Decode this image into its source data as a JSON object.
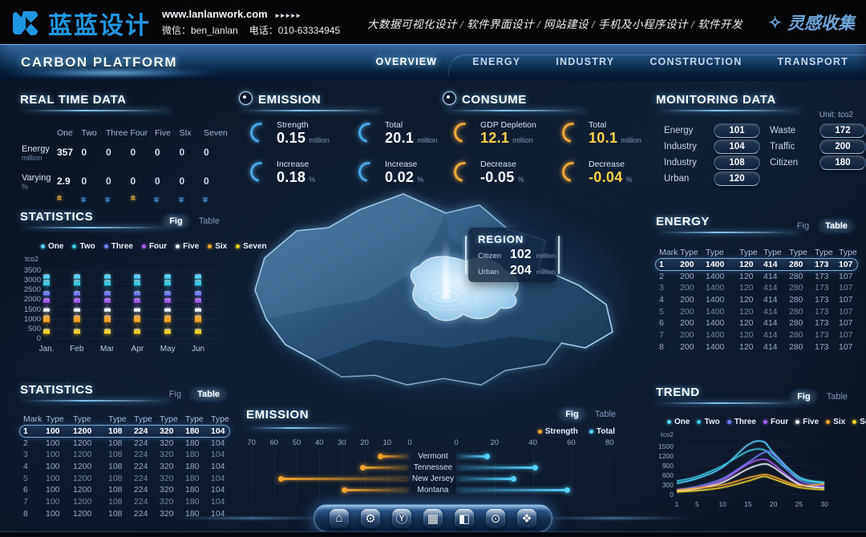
{
  "header": {
    "logo_text": "蓝蓝设计",
    "website": "www.lanlanwork.com",
    "website_arrows": "▸▸▸▸▸",
    "wechat_label": "微信：ben_lanlan",
    "phone_label": "电话：010-63334945",
    "services": "大数据可视化设计 / 软件界面设计 / 网站建设 / 手机及小程序设计 / 软件开发",
    "collect_icon": "✧",
    "collect_label": "灵感收集"
  },
  "nav": {
    "title": "CARBON PLATFORM",
    "items": [
      "OVERVIEW",
      "ENERGY",
      "INDUSTRY",
      "CONSTRUCTION",
      "TRANSPORT"
    ],
    "active": "OVERVIEW"
  },
  "realtime": {
    "title": "REAL TIME DATA",
    "columns": [
      "One",
      "Two",
      "Three",
      "Four",
      "Five",
      "SIx",
      "Seven"
    ],
    "rows": [
      {
        "label": "Energy",
        "unit": "million",
        "values": [
          "357",
          "0",
          "0",
          "0",
          "0",
          "0",
          "0"
        ]
      },
      {
        "label": "Varying",
        "unit": "%",
        "values": [
          "2.9",
          "0",
          "0",
          "0",
          "0",
          "0",
          "0"
        ]
      }
    ],
    "arrows": [
      "up",
      "down",
      "down",
      "up",
      "down",
      "down",
      "down"
    ],
    "arrow_colors": {
      "up": "#e8b23c",
      "down": "#4593d6"
    }
  },
  "emission_stats": {
    "title": "EMISSION",
    "accent": "#4aa8e8",
    "stats": [
      {
        "label": "Strength",
        "value": "0.15",
        "unit": "million"
      },
      {
        "label": "Total",
        "value": "20.1",
        "unit": "million"
      },
      {
        "label": "Increase",
        "value": "0.18",
        "unit": "%"
      },
      {
        "label": "Increase",
        "value": "0.02",
        "unit": "%"
      }
    ]
  },
  "consume_stats": {
    "title": "CONSUME",
    "accent": "#f0a93c",
    "stats": [
      {
        "label": "GDP Depletion",
        "value": "12.1",
        "unit": "million",
        "value_color": "#ffd24a"
      },
      {
        "label": "Total",
        "value": "10.1",
        "unit": "million",
        "value_color": "#ffd24a"
      },
      {
        "label": "Decrease",
        "value": "-0.05",
        "unit": "%"
      },
      {
        "label": "Decrease",
        "value": "-0.04",
        "unit": "%",
        "value_color": "#ffd24a"
      }
    ]
  },
  "monitoring": {
    "title": "MONITORING DATA",
    "unit_note": "Unit: tco2",
    "left": [
      {
        "label": "Energy",
        "value": "101"
      },
      {
        "label": "Industry",
        "value": "104"
      },
      {
        "label": "Industry",
        "value": "108"
      },
      {
        "label": "Urban",
        "value": "120"
      }
    ],
    "right": [
      {
        "label": "Waste",
        "value": "172"
      },
      {
        "label": "Traffic",
        "value": "200"
      },
      {
        "label": "Citizen",
        "value": "180"
      }
    ]
  },
  "region_popup": {
    "title": "REGION",
    "rows": [
      {
        "label": "Citizen",
        "value": "102",
        "unit": "million"
      },
      {
        "label": "Urban",
        "value": "204",
        "unit": "million"
      }
    ]
  },
  "panels": {
    "statistics_fig": {
      "title": "STATISTICS",
      "fig": "Fig",
      "table": "Table",
      "active": "fig"
    },
    "statistics_table": {
      "title": "STATISTICS",
      "fig": "Fig",
      "table": "Table",
      "active": "table"
    },
    "energy": {
      "title": "ENERGY",
      "fig": "Fig",
      "table": "Table",
      "active": "table"
    },
    "emission_chart": {
      "title": "EMISSION",
      "fig": "Fig",
      "table": "Table",
      "active": "fig"
    },
    "trend": {
      "title": "TREND",
      "fig": "Fig",
      "table": "Table",
      "active": "fig"
    }
  },
  "series_legend": [
    {
      "name": "One",
      "color": "#55d2ff"
    },
    {
      "name": "Two",
      "color": "#3ac8e0"
    },
    {
      "name": "Three",
      "color": "#6e7ef5"
    },
    {
      "name": "Four",
      "color": "#a55ef2"
    },
    {
      "name": "Five",
      "color": "#f0f4f9"
    },
    {
      "name": "Six",
      "color": "#f2a52e"
    },
    {
      "name": "Seven",
      "color": "#f0d02e"
    }
  ],
  "energy_table": {
    "headers": [
      "Mark",
      "Type",
      "Type",
      "Type",
      "Type",
      "Type",
      "Type",
      "Type"
    ],
    "rows": [
      [
        "1",
        "200",
        "1400",
        "120",
        "414",
        "280",
        "173",
        "107"
      ],
      [
        "2",
        "200",
        "1400",
        "120",
        "414",
        "280",
        "173",
        "107"
      ],
      [
        "3",
        "200",
        "1400",
        "120",
        "414",
        "280",
        "173",
        "107"
      ],
      [
        "4",
        "200",
        "1400",
        "120",
        "414",
        "280",
        "173",
        "107"
      ],
      [
        "5",
        "200",
        "1400",
        "120",
        "414",
        "280",
        "173",
        "107"
      ],
      [
        "6",
        "200",
        "1400",
        "120",
        "414",
        "280",
        "173",
        "107"
      ],
      [
        "7",
        "200",
        "1400",
        "120",
        "414",
        "280",
        "173",
        "107"
      ],
      [
        "8",
        "200",
        "1400",
        "120",
        "414",
        "280",
        "173",
        "107"
      ]
    ]
  },
  "statistics_table": {
    "headers": [
      "Mark",
      "Type",
      "Type",
      "Type",
      "Type",
      "Type",
      "Type",
      "Type"
    ],
    "rows": [
      [
        "1",
        "100",
        "1200",
        "108",
        "224",
        "320",
        "180",
        "104"
      ],
      [
        "2",
        "100",
        "1200",
        "108",
        "224",
        "320",
        "180",
        "104"
      ],
      [
        "3",
        "100",
        "1200",
        "108",
        "224",
        "320",
        "180",
        "104"
      ],
      [
        "4",
        "100",
        "1200",
        "108",
        "224",
        "320",
        "180",
        "104"
      ],
      [
        "5",
        "100",
        "1200",
        "108",
        "224",
        "320",
        "180",
        "104"
      ],
      [
        "6",
        "100",
        "1200",
        "108",
        "224",
        "320",
        "180",
        "104"
      ],
      [
        "7",
        "100",
        "1200",
        "108",
        "224",
        "320",
        "180",
        "104"
      ],
      [
        "8",
        "100",
        "1200",
        "108",
        "224",
        "320",
        "180",
        "104"
      ]
    ]
  },
  "dock": {
    "icons": [
      {
        "name": "home-icon",
        "glyph": "⌂"
      },
      {
        "name": "gear-icon",
        "glyph": "⚙"
      },
      {
        "name": "y-badge-icon",
        "glyph": "Ⓨ"
      },
      {
        "name": "grid-icon",
        "glyph": "▦"
      },
      {
        "name": "board-icon",
        "glyph": "◧"
      },
      {
        "name": "target-icon",
        "glyph": "⊙"
      },
      {
        "name": "cluster-icon",
        "glyph": "❖"
      }
    ]
  },
  "chart_data": [
    {
      "id": "statistics-fig",
      "type": "bar",
      "title": "STATISTICS",
      "ylabel": "tco2",
      "ylim": [
        0,
        3500
      ],
      "yticks": [
        0,
        500,
        1000,
        1500,
        2000,
        2500,
        3000,
        3500
      ],
      "categories": [
        "Jan.",
        "Feb",
        "Mar",
        "Apr",
        "May",
        "Jun"
      ],
      "legend_position": "top",
      "note": "each month shows the same seven glowing value segments",
      "series": [
        {
          "name": "One",
          "color": "#55d2ff",
          "range": [
            3020,
            3310
          ]
        },
        {
          "name": "Two",
          "color": "#3ac8e0",
          "range": [
            2620,
            2990
          ]
        },
        {
          "name": "Three",
          "color": "#6e7ef5",
          "range": [
            2160,
            2430
          ]
        },
        {
          "name": "Four",
          "color": "#a55ef2",
          "range": [
            1770,
            2060
          ]
        },
        {
          "name": "Five",
          "color": "#f0f4f9",
          "range": [
            1310,
            1570
          ]
        },
        {
          "name": "Six",
          "color": "#f2a52e",
          "range": [
            730,
            1190
          ]
        },
        {
          "name": "Seven",
          "color": "#f0d02e",
          "range": [
            160,
            510
          ]
        }
      ]
    },
    {
      "id": "emission-diverging",
      "type": "bar",
      "title": "EMISSION",
      "orientation": "horizontal-diverging",
      "categories": [
        "Vermont",
        "Tennessee",
        "New Jersey",
        "Montana"
      ],
      "left_axis_ticks": [
        70,
        60,
        50,
        40,
        30,
        20,
        10,
        0
      ],
      "right_axis_ticks": [
        0,
        20,
        40,
        60,
        80
      ],
      "series": [
        {
          "name": "Strength",
          "color": "#f2a52e",
          "values": [
            12,
            20,
            56,
            28
          ]
        },
        {
          "name": "Total",
          "color": "#55d2ff",
          "values": [
            15,
            40,
            29,
            57
          ]
        }
      ]
    },
    {
      "id": "trend",
      "type": "line",
      "title": "TREND",
      "ylabel": "tco2",
      "ylim": [
        0,
        1700
      ],
      "yticks": [
        0,
        300,
        600,
        900,
        1200,
        1500
      ],
      "xticks": [
        1,
        5,
        10,
        15,
        20,
        25,
        30
      ],
      "x": [
        1,
        5,
        10,
        15,
        18,
        20,
        25,
        30
      ],
      "series": [
        {
          "name": "One",
          "color": "#55d2ff",
          "values": [
            350,
            500,
            850,
            1550,
            1650,
            1300,
            550,
            380
          ]
        },
        {
          "name": "Two",
          "color": "#3ac8e0",
          "values": [
            420,
            560,
            900,
            1350,
            1400,
            1150,
            500,
            350
          ]
        },
        {
          "name": "Three",
          "color": "#6e7ef5",
          "values": [
            150,
            250,
            500,
            1000,
            1300,
            1250,
            450,
            300
          ]
        },
        {
          "name": "Four",
          "color": "#a55ef2",
          "values": [
            120,
            200,
            450,
            950,
            1100,
            950,
            350,
            250
          ]
        },
        {
          "name": "Five",
          "color": "#f0f4f9",
          "values": [
            100,
            180,
            380,
            800,
            950,
            850,
            320,
            200
          ]
        },
        {
          "name": "Six",
          "color": "#f2a52e",
          "values": [
            130,
            200,
            300,
            520,
            620,
            560,
            280,
            330
          ]
        },
        {
          "name": "Seven",
          "color": "#f0d02e",
          "values": [
            80,
            120,
            220,
            420,
            560,
            480,
            220,
            150
          ]
        }
      ]
    }
  ]
}
